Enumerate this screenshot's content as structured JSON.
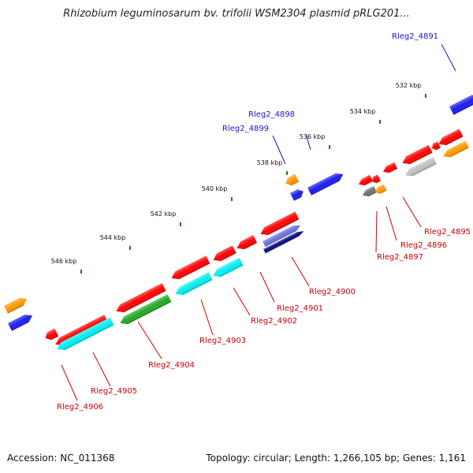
{
  "header": {
    "title": "Rhizobium leguminosarum bv. trifolii WSM2304 plasmid pRLG201..."
  },
  "footer": {
    "accession": "Accession: NC_011368",
    "summary": "Topology: circular; Length: 1,266,105 bp; Genes: 1,161"
  },
  "colors": {
    "backbone": "#808080",
    "tick": "#1a7a1a",
    "forward_label": "#1515d0",
    "reverse_label": "#cc0000",
    "leader_forward": "#1515d0",
    "leader_reverse": "#cc0000",
    "red": "#ff0000",
    "blue": "#1c1cf0",
    "orange": "#ff9900",
    "cyan": "#00f0f0",
    "green": "#22aa22",
    "navy": "#0a0a80",
    "gray": "#707070",
    "lightgray": "#c0c0c0",
    "lavender": "#7070e0"
  },
  "scale": {
    "ticks": [
      {
        "label": "532 kbp"
      },
      {
        "label": "534 kbp"
      },
      {
        "label": "536 kbp"
      },
      {
        "label": "538 kbp"
      },
      {
        "label": "540 kbp"
      },
      {
        "label": "542 kbp"
      },
      {
        "label": "544 kbp"
      },
      {
        "label": "546 kbp"
      }
    ]
  },
  "genes": {
    "forward_labels": [
      {
        "text": "Rleg2_4891"
      },
      {
        "text": "Rleg2_4898"
      },
      {
        "text": "Rleg2_4899"
      }
    ],
    "reverse_labels": [
      {
        "text": "Rleg2_4895"
      },
      {
        "text": "Rleg2_4896"
      },
      {
        "text": "Rleg2_4897"
      },
      {
        "text": "Rleg2_4900"
      },
      {
        "text": "Rleg2_4901"
      },
      {
        "text": "Rleg2_4902"
      },
      {
        "text": "Rleg2_4903"
      },
      {
        "text": "Rleg2_4904"
      },
      {
        "text": "Rleg2_4905"
      },
      {
        "text": "Rleg2_4906"
      }
    ]
  }
}
